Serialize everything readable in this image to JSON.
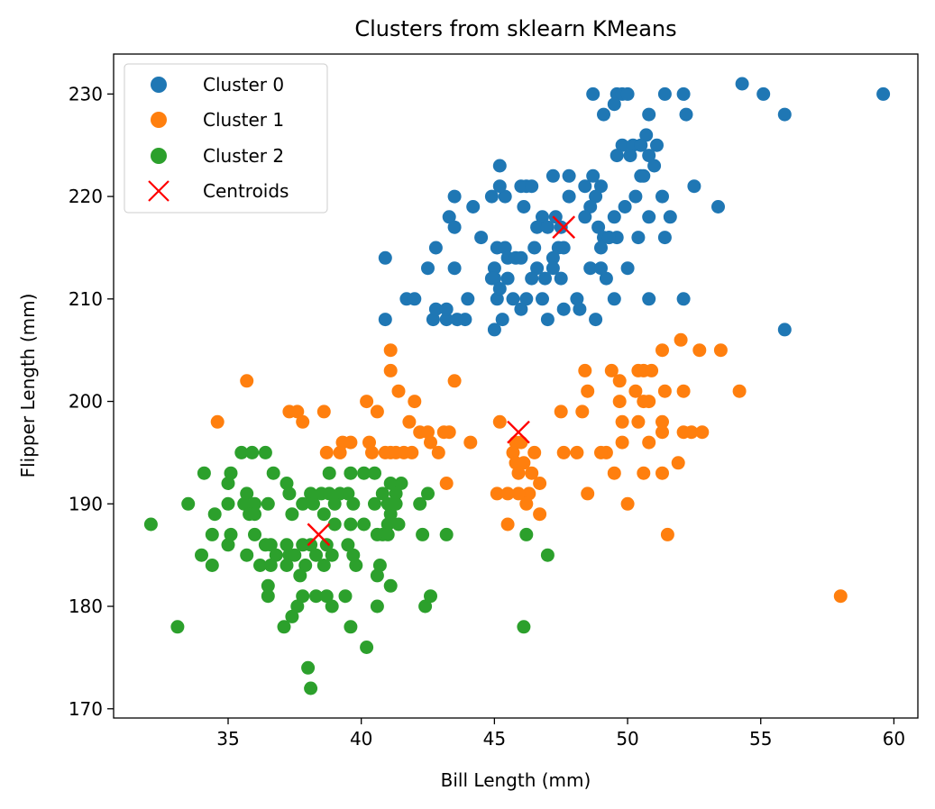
{
  "chart_data": {
    "type": "scatter",
    "title": "Clusters from sklearn KMeans",
    "xlabel": "Bill Length (mm)",
    "ylabel": "Flipper Length (mm)",
    "xlim": [
      30.7,
      60.9
    ],
    "ylim": [
      169.1,
      233.9
    ],
    "xticks": [
      35,
      40,
      45,
      50,
      55,
      60
    ],
    "yticks": [
      170,
      180,
      190,
      200,
      210,
      220,
      230
    ],
    "grid": false,
    "legend_position": "upper-left",
    "series": [
      {
        "name": "Cluster 0",
        "color": "#1f77b4",
        "marker": "circle",
        "points": [
          [
            48.7,
            230
          ],
          [
            49.6,
            230
          ],
          [
            49.8,
            230
          ],
          [
            50.0,
            230
          ],
          [
            51.4,
            230
          ],
          [
            52.1,
            230
          ],
          [
            54.3,
            231
          ],
          [
            55.1,
            230
          ],
          [
            59.6,
            230
          ],
          [
            49.1,
            228
          ],
          [
            50.8,
            228
          ],
          [
            52.2,
            228
          ],
          [
            55.9,
            228
          ],
          [
            49.5,
            229
          ],
          [
            50.7,
            226
          ],
          [
            49.8,
            225
          ],
          [
            50.2,
            225
          ],
          [
            50.5,
            225
          ],
          [
            51.1,
            225
          ],
          [
            49.6,
            224
          ],
          [
            50.1,
            224
          ],
          [
            50.8,
            224
          ],
          [
            50.5,
            222
          ],
          [
            50.6,
            222
          ],
          [
            51.0,
            223
          ],
          [
            45.2,
            223
          ],
          [
            47.2,
            222
          ],
          [
            47.8,
            222
          ],
          [
            48.7,
            222
          ],
          [
            46.2,
            221
          ],
          [
            49.0,
            221
          ],
          [
            52.5,
            221
          ],
          [
            43.5,
            220
          ],
          [
            44.9,
            220
          ],
          [
            45.4,
            220
          ],
          [
            45.2,
            221
          ],
          [
            46.0,
            221
          ],
          [
            46.4,
            221
          ],
          [
            48.4,
            221
          ],
          [
            48.8,
            220
          ],
          [
            50.3,
            220
          ],
          [
            51.3,
            220
          ],
          [
            43.3,
            218
          ],
          [
            44.2,
            219
          ],
          [
            46.1,
            219
          ],
          [
            47.8,
            220
          ],
          [
            48.6,
            219
          ],
          [
            49.9,
            219
          ],
          [
            53.4,
            219
          ],
          [
            48.4,
            218
          ],
          [
            49.5,
            218
          ],
          [
            50.8,
            218
          ],
          [
            51.6,
            218
          ],
          [
            43.5,
            217
          ],
          [
            46.8,
            218
          ],
          [
            47.3,
            218
          ],
          [
            47.5,
            217
          ],
          [
            44.5,
            216
          ],
          [
            46.6,
            217
          ],
          [
            47.0,
            217
          ],
          [
            48.9,
            217
          ],
          [
            49.1,
            216
          ],
          [
            49.3,
            216
          ],
          [
            49.6,
            216
          ],
          [
            50.4,
            216
          ],
          [
            51.4,
            216
          ],
          [
            42.8,
            215
          ],
          [
            45.1,
            215
          ],
          [
            45.4,
            215
          ],
          [
            46.5,
            215
          ],
          [
            47.4,
            215
          ],
          [
            47.6,
            215
          ],
          [
            49.0,
            215
          ],
          [
            49.3,
            216
          ],
          [
            45.5,
            214
          ],
          [
            45.8,
            214
          ],
          [
            46.0,
            214
          ],
          [
            47.2,
            214
          ],
          [
            40.9,
            214
          ],
          [
            42.5,
            213
          ],
          [
            43.5,
            213
          ],
          [
            45.0,
            213
          ],
          [
            46.6,
            213
          ],
          [
            47.2,
            213
          ],
          [
            48.6,
            213
          ],
          [
            49.0,
            213
          ],
          [
            50.0,
            213
          ],
          [
            45.0,
            212
          ],
          [
            45.5,
            212
          ],
          [
            46.4,
            212
          ],
          [
            47.5,
            212
          ],
          [
            49.2,
            212
          ],
          [
            44.9,
            212
          ],
          [
            46.9,
            212
          ],
          [
            41.7,
            210
          ],
          [
            42.0,
            210
          ],
          [
            44.0,
            210
          ],
          [
            45.1,
            210
          ],
          [
            45.7,
            210
          ],
          [
            46.2,
            210
          ],
          [
            46.8,
            210
          ],
          [
            48.1,
            210
          ],
          [
            49.5,
            210
          ],
          [
            50.8,
            210
          ],
          [
            52.1,
            210
          ],
          [
            45.2,
            211
          ],
          [
            42.7,
            208
          ],
          [
            43.2,
            208
          ],
          [
            43.6,
            208
          ],
          [
            43.9,
            208
          ],
          [
            45.3,
            208
          ],
          [
            47.0,
            208
          ],
          [
            48.8,
            208
          ],
          [
            40.9,
            208
          ],
          [
            42.8,
            209
          ],
          [
            43.2,
            209
          ],
          [
            46.0,
            209
          ],
          [
            47.6,
            209
          ],
          [
            48.2,
            209
          ],
          [
            45.0,
            207
          ],
          [
            55.9,
            207
          ]
        ]
      },
      {
        "name": "Cluster 1",
        "color": "#ff7f0e",
        "marker": "circle",
        "points": [
          [
            41.1,
            205
          ],
          [
            35.7,
            202
          ],
          [
            43.5,
            202
          ],
          [
            41.1,
            203
          ],
          [
            41.4,
            201
          ],
          [
            40.2,
            200
          ],
          [
            42.0,
            200
          ],
          [
            40.6,
            199
          ],
          [
            37.3,
            199
          ],
          [
            37.6,
            199
          ],
          [
            38.6,
            199
          ],
          [
            37.8,
            198
          ],
          [
            34.6,
            198
          ],
          [
            41.8,
            198
          ],
          [
            42.2,
            197
          ],
          [
            42.5,
            197
          ],
          [
            43.1,
            197
          ],
          [
            43.3,
            197
          ],
          [
            38.7,
            195
          ],
          [
            39.2,
            195
          ],
          [
            39.3,
            196
          ],
          [
            39.6,
            196
          ],
          [
            40.3,
            196
          ],
          [
            40.9,
            195
          ],
          [
            41.1,
            195
          ],
          [
            41.6,
            195
          ],
          [
            41.9,
            195
          ],
          [
            42.9,
            195
          ],
          [
            44.1,
            196
          ],
          [
            40.4,
            195
          ],
          [
            42.6,
            196
          ],
          [
            41.3,
            195
          ],
          [
            43.2,
            192
          ],
          [
            45.2,
            198
          ],
          [
            45.8,
            196
          ],
          [
            46.0,
            196
          ],
          [
            45.7,
            195
          ],
          [
            45.8,
            194
          ],
          [
            46.1,
            194
          ],
          [
            45.9,
            193
          ],
          [
            46.5,
            195
          ],
          [
            46.4,
            193
          ],
          [
            46.7,
            192
          ],
          [
            46.3,
            191
          ],
          [
            45.9,
            191
          ],
          [
            46.2,
            190
          ],
          [
            45.1,
            191
          ],
          [
            45.5,
            191
          ],
          [
            46.7,
            189
          ],
          [
            45.5,
            188
          ],
          [
            48.4,
            203
          ],
          [
            49.4,
            203
          ],
          [
            48.5,
            201
          ],
          [
            50.4,
            203
          ],
          [
            50.6,
            203
          ],
          [
            50.9,
            203
          ],
          [
            51.4,
            201
          ],
          [
            52.1,
            201
          ],
          [
            54.2,
            201
          ],
          [
            51.3,
            205
          ],
          [
            52.0,
            206
          ],
          [
            52.7,
            205
          ],
          [
            53.5,
            205
          ],
          [
            49.7,
            202
          ],
          [
            50.3,
            201
          ],
          [
            50.6,
            200
          ],
          [
            49.7,
            200
          ],
          [
            50.8,
            200
          ],
          [
            50.4,
            198
          ],
          [
            49.8,
            198
          ],
          [
            51.3,
            198
          ],
          [
            51.3,
            197
          ],
          [
            52.1,
            197
          ],
          [
            52.4,
            197
          ],
          [
            52.8,
            197
          ],
          [
            50.8,
            196
          ],
          [
            49.8,
            196
          ],
          [
            49.2,
            195
          ],
          [
            49.0,
            195
          ],
          [
            49.5,
            193
          ],
          [
            48.1,
            195
          ],
          [
            47.6,
            195
          ],
          [
            47.5,
            199
          ],
          [
            48.3,
            199
          ],
          [
            51.9,
            194
          ],
          [
            51.3,
            193
          ],
          [
            50.6,
            193
          ],
          [
            48.5,
            191
          ],
          [
            50.0,
            190
          ],
          [
            51.5,
            187
          ],
          [
            58.0,
            181
          ]
        ]
      },
      {
        "name": "Cluster 2",
        "color": "#2ca02c",
        "marker": "circle",
        "points": [
          [
            35.5,
            195
          ],
          [
            35.9,
            195
          ],
          [
            36.4,
            195
          ],
          [
            34.1,
            193
          ],
          [
            35.1,
            193
          ],
          [
            36.7,
            193
          ],
          [
            37.2,
            192
          ],
          [
            38.8,
            193
          ],
          [
            39.6,
            193
          ],
          [
            40.1,
            193
          ],
          [
            40.5,
            193
          ],
          [
            41.1,
            192
          ],
          [
            41.5,
            192
          ],
          [
            35.0,
            192
          ],
          [
            35.7,
            191
          ],
          [
            37.3,
            191
          ],
          [
            38.1,
            191
          ],
          [
            38.5,
            191
          ],
          [
            38.8,
            191
          ],
          [
            39.2,
            191
          ],
          [
            39.5,
            191
          ],
          [
            40.8,
            191
          ],
          [
            41.0,
            190
          ],
          [
            41.3,
            191
          ],
          [
            42.2,
            190
          ],
          [
            42.5,
            191
          ],
          [
            33.5,
            190
          ],
          [
            35.0,
            190
          ],
          [
            35.6,
            190
          ],
          [
            36.0,
            190
          ],
          [
            36.5,
            190
          ],
          [
            37.8,
            190
          ],
          [
            38.2,
            190
          ],
          [
            39.0,
            190
          ],
          [
            39.7,
            190
          ],
          [
            40.5,
            190
          ],
          [
            41.1,
            189
          ],
          [
            41.3,
            190
          ],
          [
            34.5,
            189
          ],
          [
            35.8,
            189
          ],
          [
            36.0,
            189
          ],
          [
            37.4,
            189
          ],
          [
            38.6,
            189
          ],
          [
            39.0,
            188
          ],
          [
            39.6,
            188
          ],
          [
            40.1,
            188
          ],
          [
            40.8,
            187
          ],
          [
            41.0,
            188
          ],
          [
            41.4,
            188
          ],
          [
            43.2,
            187
          ],
          [
            40.6,
            187
          ],
          [
            41.0,
            187
          ],
          [
            32.1,
            188
          ],
          [
            34.4,
            187
          ],
          [
            35.1,
            187
          ],
          [
            36.0,
            187
          ],
          [
            36.4,
            186
          ],
          [
            37.2,
            186
          ],
          [
            38.1,
            186
          ],
          [
            38.7,
            186
          ],
          [
            39.5,
            186
          ],
          [
            35.0,
            186
          ],
          [
            36.6,
            186
          ],
          [
            37.8,
            186
          ],
          [
            38.9,
            185
          ],
          [
            39.8,
            184
          ],
          [
            40.7,
            184
          ],
          [
            34.0,
            185
          ],
          [
            35.7,
            185
          ],
          [
            36.8,
            185
          ],
          [
            37.3,
            185
          ],
          [
            37.5,
            185
          ],
          [
            38.3,
            185
          ],
          [
            38.6,
            184
          ],
          [
            39.7,
            185
          ],
          [
            34.4,
            184
          ],
          [
            36.2,
            184
          ],
          [
            36.6,
            184
          ],
          [
            37.2,
            184
          ],
          [
            37.9,
            184
          ],
          [
            37.7,
            183
          ],
          [
            40.6,
            183
          ],
          [
            41.1,
            182
          ],
          [
            36.5,
            182
          ],
          [
            36.5,
            181
          ],
          [
            37.8,
            181
          ],
          [
            38.3,
            181
          ],
          [
            38.7,
            181
          ],
          [
            39.4,
            181
          ],
          [
            42.4,
            180
          ],
          [
            42.6,
            181
          ],
          [
            37.6,
            180
          ],
          [
            38.9,
            180
          ],
          [
            40.6,
            180
          ],
          [
            37.4,
            179
          ],
          [
            37.1,
            178
          ],
          [
            39.6,
            178
          ],
          [
            33.1,
            178
          ],
          [
            38.0,
            174
          ],
          [
            38.1,
            172
          ],
          [
            40.2,
            176
          ],
          [
            42.3,
            187
          ],
          [
            46.2,
            187
          ],
          [
            47.0,
            185
          ],
          [
            46.1,
            178
          ]
        ]
      }
    ],
    "centroids": {
      "name": "Centroids",
      "color": "#ff0000",
      "marker": "x",
      "points": [
        [
          47.6,
          217
        ],
        [
          45.9,
          197
        ],
        [
          38.4,
          187
        ]
      ]
    }
  }
}
